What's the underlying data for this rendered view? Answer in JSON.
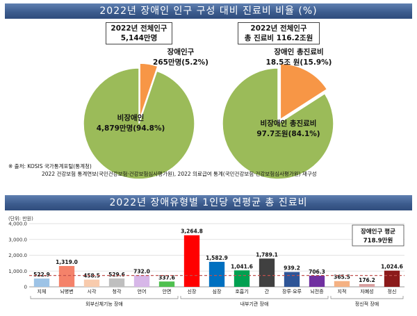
{
  "top_title": "2022년 장애인 인구 구성 대비 진료비 비율 (%)",
  "bottom_title": "2022년 장애유형별 1인당 연평균 총 진료비",
  "source_line1": "※ 출처: KOSIS 국가통계포털(통계청)",
  "source_line2": "2022 건강보험 통계연보(국민건강보험·건강보험심사평가원), 2022 의료급여 통계(국민건강보험·건강보험심사평가원) 재구성",
  "colors": {
    "pie_green": "#9bbb59",
    "pie_orange": "#f79646",
    "avg_line": "#c0504d"
  },
  "chart_data": [
    {
      "type": "pie",
      "box_line1": "2022년 전체인구",
      "box_line2": "5,144만명",
      "slices": [
        {
          "name": "장애인구",
          "label_value": "265만명(5.2%)",
          "value": 5.2,
          "color": "#f79646"
        },
        {
          "name": "비장애인",
          "label_value": "4,879만명(94.8%)",
          "value": 94.8,
          "color": "#9bbb59"
        }
      ]
    },
    {
      "type": "pie",
      "box_line1": "2022년 전체인구",
      "box_line2": "총 진료비 116.2조원",
      "slices": [
        {
          "name": "장애인 총진료비",
          "label_value": "18.5조 원(15.9%)",
          "value": 15.9,
          "color": "#f79646"
        },
        {
          "name": "비장애인 총진료비",
          "label_value": "97.7조원(84.1%)",
          "value": 84.1,
          "color": "#9bbb59"
        }
      ]
    },
    {
      "type": "bar",
      "ylabel": "(단위: 만원)",
      "ylim": [
        0,
        4000
      ],
      "yticks": [
        "0",
        "1,000.0",
        "2,000.0",
        "3,000.0",
        "4,000.0"
      ],
      "grid": true,
      "categories": [
        "지체",
        "뇌병변",
        "시각",
        "청각",
        "언어",
        "안면",
        "신장",
        "심장",
        "호흡기",
        "간",
        "장루·요루",
        "뇌전증",
        "지적",
        "자폐성",
        "정신"
      ],
      "values": [
        522.9,
        1319.0,
        458.5,
        529.6,
        732.0,
        337.6,
        3264.8,
        1582.9,
        1041.6,
        1789.1,
        939.2,
        706.3,
        365.5,
        176.2,
        1024.6
      ],
      "value_labels": [
        "522.9",
        "1,319.0",
        "458.5",
        "529.6",
        "732.0",
        "337.6",
        "3,264.8",
        "1,582.9",
        "1,041.6",
        "1,789.1",
        "939.2",
        "706.3",
        "365.5",
        "176.2",
        "1,024.6"
      ],
      "bar_colors": [
        "#9dc3e6",
        "#f4826a",
        "#f8cbad",
        "#bfbfbf",
        "#d7b7e8",
        "#4fc04f",
        "#ff0000",
        "#0070c0",
        "#00a050",
        "#404040",
        "#2e5597",
        "#7030a0",
        "#f4b183",
        "#d9a0a0",
        "#8b1a1a"
      ],
      "groups": [
        {
          "name": "외부신체기능 장애",
          "count": 6
        },
        {
          "name": "내부기관 장애",
          "count": 6
        },
        {
          "name": "정신적 장애",
          "count": 3
        }
      ],
      "average": {
        "value": 718.9,
        "label_line1": "장애인구 평균",
        "label_line2": "718.9만원"
      }
    }
  ]
}
